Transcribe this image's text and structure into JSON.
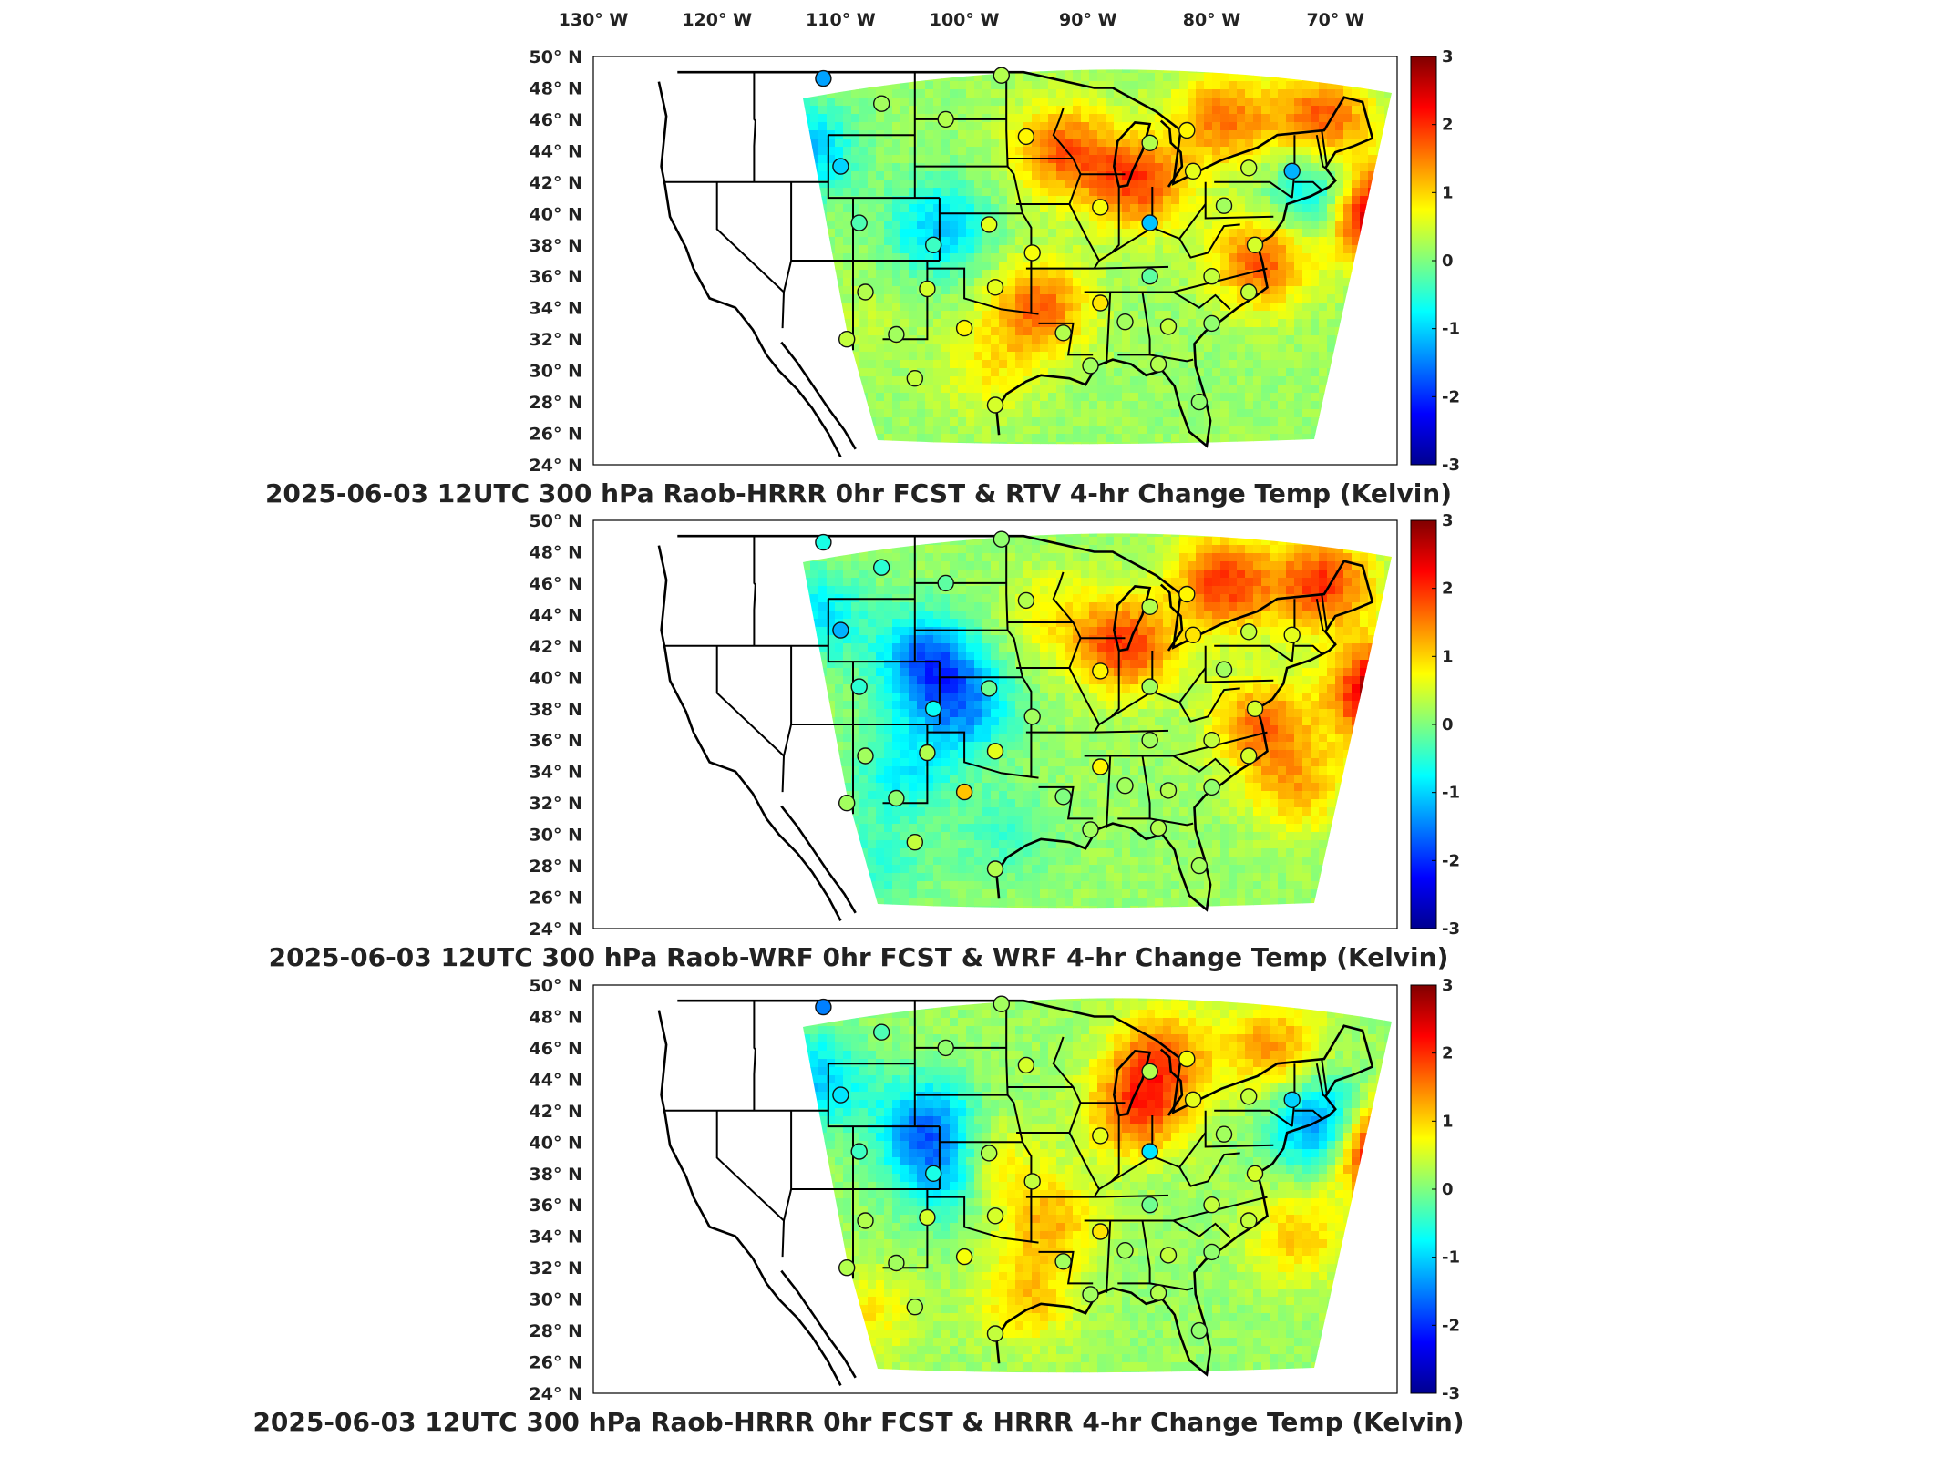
{
  "chart_data": [
    {
      "type": "heatmap",
      "title": "2025-06-03 12UTC 300 hPa Raob-HRRR 0hr FCST & RTV 4-hr Change Temp (Kelvin)",
      "x_ticks": [
        "130° W",
        "120° W",
        "110° W",
        "100° W",
        "90° W",
        "80° W",
        "70° W"
      ],
      "y_ticks": [
        "50° N",
        "48° N",
        "46° N",
        "44° N",
        "42° N",
        "40° N",
        "38° N",
        "36° N",
        "34° N",
        "32° N",
        "30° N",
        "28° N",
        "26° N",
        "24° N"
      ],
      "colorbar": {
        "ticks": [
          "3",
          "2",
          "1",
          "0",
          "-1",
          "-2",
          "-3"
        ],
        "range": [
          -3,
          3
        ],
        "colormap": "jet"
      },
      "lon_range": [
        -130,
        -65
      ],
      "lat_range": [
        24,
        50
      ],
      "field_anomalies": [
        {
          "lon": -113,
          "lat": 44,
          "value": -1.3
        },
        {
          "lon": -102,
          "lat": 39,
          "value": -1.2
        },
        {
          "lon": -92,
          "lat": 44,
          "value": 1.5
        },
        {
          "lon": -86,
          "lat": 42,
          "value": 1.7
        },
        {
          "lon": -79,
          "lat": 46,
          "value": 1.4
        },
        {
          "lon": -71,
          "lat": 46,
          "value": 1.6
        },
        {
          "lon": -67,
          "lat": 40,
          "value": 3.0
        },
        {
          "lon": -71,
          "lat": 41,
          "value": -1.6
        },
        {
          "lon": -76,
          "lat": 37,
          "value": 1.6
        },
        {
          "lon": -94,
          "lat": 34,
          "value": 1.5
        },
        {
          "lon": -98,
          "lat": 30,
          "value": 0.6
        },
        {
          "lon": -108,
          "lat": 33,
          "value": 0.2
        }
      ],
      "stations": [
        {
          "lon": -111.4,
          "lat": 48.6,
          "value": -1.3
        },
        {
          "lon": -106.7,
          "lat": 47.0,
          "value": 0.2
        },
        {
          "lon": -101.5,
          "lat": 46.0,
          "value": 0.3
        },
        {
          "lon": -97.0,
          "lat": 48.8,
          "value": 0.3
        },
        {
          "lon": -95.0,
          "lat": 44.9,
          "value": 0.8
        },
        {
          "lon": -110.0,
          "lat": 43.0,
          "value": -1.0
        },
        {
          "lon": -108.5,
          "lat": 39.4,
          "value": -0.3
        },
        {
          "lon": -102.5,
          "lat": 38.0,
          "value": -0.4
        },
        {
          "lon": -98.0,
          "lat": 39.3,
          "value": 0.6
        },
        {
          "lon": -94.5,
          "lat": 37.5,
          "value": 0.7
        },
        {
          "lon": -89.0,
          "lat": 40.4,
          "value": 0.7
        },
        {
          "lon": -85.0,
          "lat": 44.5,
          "value": 0.3
        },
        {
          "lon": -82.0,
          "lat": 45.3,
          "value": 0.8
        },
        {
          "lon": -81.5,
          "lat": 42.7,
          "value": 0.6
        },
        {
          "lon": -77.0,
          "lat": 42.9,
          "value": 0.4
        },
        {
          "lon": -73.5,
          "lat": 42.7,
          "value": -1.2
        },
        {
          "lon": -79.0,
          "lat": 40.5,
          "value": 0.2
        },
        {
          "lon": -85.0,
          "lat": 39.4,
          "value": -1.1
        },
        {
          "lon": -76.5,
          "lat": 38.0,
          "value": 0.5
        },
        {
          "lon": -80.0,
          "lat": 36.0,
          "value": 0.4
        },
        {
          "lon": -85.0,
          "lat": 36.0,
          "value": -0.2
        },
        {
          "lon": -89.0,
          "lat": 34.3,
          "value": 0.9
        },
        {
          "lon": -92.0,
          "lat": 32.4,
          "value": 0.3
        },
        {
          "lon": -87.0,
          "lat": 33.1,
          "value": 0.2
        },
        {
          "lon": -83.5,
          "lat": 32.8,
          "value": 0.4
        },
        {
          "lon": -80.0,
          "lat": 33.0,
          "value": 0.1
        },
        {
          "lon": -108.0,
          "lat": 35.0,
          "value": 0.3
        },
        {
          "lon": -103.0,
          "lat": 35.2,
          "value": 0.5
        },
        {
          "lon": -97.5,
          "lat": 35.3,
          "value": 0.6
        },
        {
          "lon": -105.5,
          "lat": 32.3,
          "value": 0.2
        },
        {
          "lon": -109.5,
          "lat": 32.0,
          "value": 0.4
        },
        {
          "lon": -100.0,
          "lat": 32.7,
          "value": 0.8
        },
        {
          "lon": -104.0,
          "lat": 29.5,
          "value": 0.4
        },
        {
          "lon": -97.5,
          "lat": 27.8,
          "value": 0.5
        },
        {
          "lon": -89.8,
          "lat": 30.3,
          "value": 0.2
        },
        {
          "lon": -84.3,
          "lat": 30.4,
          "value": 0.3
        },
        {
          "lon": -81.0,
          "lat": 28.0,
          "value": 0.1
        },
        {
          "lon": -77.0,
          "lat": 35.0,
          "value": 0.4
        }
      ]
    },
    {
      "type": "heatmap",
      "title": "2025-06-03 12UTC 300 hPa Raob-WRF 0hr FCST & WRF 4-hr Change Temp (Kelvin)",
      "x_ticks": [],
      "y_ticks": [
        "50° N",
        "48° N",
        "46° N",
        "44° N",
        "42° N",
        "40° N",
        "38° N",
        "36° N",
        "34° N",
        "32° N",
        "30° N",
        "28° N",
        "26° N",
        "24° N"
      ],
      "colorbar": {
        "ticks": [
          "3",
          "2",
          "1",
          "0",
          "-1",
          "-2",
          "-3"
        ],
        "range": [
          -3,
          3
        ],
        "colormap": "jet"
      },
      "lon_range": [
        -130,
        -65
      ],
      "lat_range": [
        24,
        50
      ],
      "field_anomalies": [
        {
          "lon": -112,
          "lat": 44,
          "value": -1.0
        },
        {
          "lon": -103,
          "lat": 41,
          "value": -1.8
        },
        {
          "lon": -100,
          "lat": 38,
          "value": -1.4
        },
        {
          "lon": -105,
          "lat": 34,
          "value": -0.9
        },
        {
          "lon": -87,
          "lat": 42,
          "value": 1.8
        },
        {
          "lon": -79,
          "lat": 46,
          "value": 1.8
        },
        {
          "lon": -71,
          "lat": 46,
          "value": 1.8
        },
        {
          "lon": -66,
          "lat": 39,
          "value": 3.0
        },
        {
          "lon": -76,
          "lat": 37,
          "value": 1.4
        },
        {
          "lon": -73,
          "lat": 33,
          "value": 1.0
        },
        {
          "lon": -93,
          "lat": 44,
          "value": 0.6
        },
        {
          "lon": -97,
          "lat": 30,
          "value": -0.5
        },
        {
          "lon": -107,
          "lat": 28,
          "value": -0.6
        }
      ],
      "stations": [
        {
          "lon": -111.4,
          "lat": 48.6,
          "value": -0.6
        },
        {
          "lon": -106.7,
          "lat": 47.0,
          "value": -0.5
        },
        {
          "lon": -101.5,
          "lat": 46.0,
          "value": -0.2
        },
        {
          "lon": -97.0,
          "lat": 48.8,
          "value": 0.1
        },
        {
          "lon": -95.0,
          "lat": 44.9,
          "value": 0.3
        },
        {
          "lon": -110.0,
          "lat": 43.0,
          "value": -1.2
        },
        {
          "lon": -108.5,
          "lat": 39.4,
          "value": -0.5
        },
        {
          "lon": -102.5,
          "lat": 38.0,
          "value": -0.7
        },
        {
          "lon": -98.0,
          "lat": 39.3,
          "value": -0.1
        },
        {
          "lon": -94.5,
          "lat": 37.5,
          "value": 0.2
        },
        {
          "lon": -89.0,
          "lat": 40.4,
          "value": 0.8
        },
        {
          "lon": -85.0,
          "lat": 44.5,
          "value": 0.3
        },
        {
          "lon": -82.0,
          "lat": 45.3,
          "value": 0.8
        },
        {
          "lon": -81.5,
          "lat": 42.7,
          "value": 0.9
        },
        {
          "lon": -77.0,
          "lat": 42.9,
          "value": 0.4
        },
        {
          "lon": -73.5,
          "lat": 42.7,
          "value": 0.6
        },
        {
          "lon": -79.0,
          "lat": 40.5,
          "value": 0.2
        },
        {
          "lon": -85.0,
          "lat": 39.4,
          "value": 0.2
        },
        {
          "lon": -76.5,
          "lat": 38.0,
          "value": 0.5
        },
        {
          "lon": -80.0,
          "lat": 36.0,
          "value": 0.4
        },
        {
          "lon": -85.0,
          "lat": 36.0,
          "value": 0.2
        },
        {
          "lon": -89.0,
          "lat": 34.3,
          "value": 0.8
        },
        {
          "lon": -92.0,
          "lat": 32.4,
          "value": 0.0
        },
        {
          "lon": -87.0,
          "lat": 33.1,
          "value": 0.2
        },
        {
          "lon": -83.5,
          "lat": 32.8,
          "value": 0.3
        },
        {
          "lon": -80.0,
          "lat": 33.0,
          "value": 0.1
        },
        {
          "lon": -108.0,
          "lat": 35.0,
          "value": 0.2
        },
        {
          "lon": -103.0,
          "lat": 35.2,
          "value": 0.3
        },
        {
          "lon": -97.5,
          "lat": 35.3,
          "value": 0.6
        },
        {
          "lon": -105.5,
          "lat": 32.3,
          "value": 0.1
        },
        {
          "lon": -109.5,
          "lat": 32.0,
          "value": 0.2
        },
        {
          "lon": -100.0,
          "lat": 32.7,
          "value": 1.1
        },
        {
          "lon": -104.0,
          "lat": 29.5,
          "value": 0.4
        },
        {
          "lon": -97.5,
          "lat": 27.8,
          "value": 0.3
        },
        {
          "lon": -89.8,
          "lat": 30.3,
          "value": 0.2
        },
        {
          "lon": -84.3,
          "lat": 30.4,
          "value": 0.3
        },
        {
          "lon": -81.0,
          "lat": 28.0,
          "value": 0.2
        },
        {
          "lon": -77.0,
          "lat": 35.0,
          "value": 0.5
        }
      ]
    },
    {
      "type": "heatmap",
      "title": "2025-06-03 12UTC 300 hPa Raob-HRRR 0hr FCST & HRRR 4-hr Change Temp (Kelvin)",
      "x_ticks": [],
      "y_ticks": [
        "50° N",
        "48° N",
        "46° N",
        "44° N",
        "42° N",
        "40° N",
        "38° N",
        "36° N",
        "34° N",
        "32° N",
        "30° N",
        "28° N",
        "26° N",
        "24° N"
      ],
      "colorbar": {
        "ticks": [
          "3",
          "2",
          "1",
          "0",
          "-1",
          "-2",
          "-3"
        ],
        "range": [
          -3,
          3
        ],
        "colormap": "jet"
      },
      "lon_range": [
        -130,
        -65
      ],
      "lat_range": [
        24,
        50
      ],
      "field_anomalies": [
        {
          "lon": -112,
          "lat": 44,
          "value": -1.2
        },
        {
          "lon": -103,
          "lat": 41,
          "value": -1.6
        },
        {
          "lon": -101,
          "lat": 38,
          "value": -1.8
        },
        {
          "lon": -99,
          "lat": 38.5,
          "value": 1.5
        },
        {
          "lon": -86,
          "lat": 42,
          "value": 1.6
        },
        {
          "lon": -84,
          "lat": 45.5,
          "value": 1.4
        },
        {
          "lon": -75,
          "lat": 46,
          "value": 1.2
        },
        {
          "lon": -66,
          "lat": 39.5,
          "value": 3.0
        },
        {
          "lon": -71,
          "lat": 41,
          "value": -1.8
        },
        {
          "lon": -73,
          "lat": 34,
          "value": 0.9
        },
        {
          "lon": -93,
          "lat": 35,
          "value": 1.0
        },
        {
          "lon": -108,
          "lat": 29,
          "value": 0.7
        },
        {
          "lon": -95,
          "lat": 30,
          "value": 0.9
        }
      ],
      "stations": [
        {
          "lon": -111.4,
          "lat": 48.6,
          "value": -1.5
        },
        {
          "lon": -106.7,
          "lat": 47.0,
          "value": -0.3
        },
        {
          "lon": -101.5,
          "lat": 46.0,
          "value": 0.1
        },
        {
          "lon": -97.0,
          "lat": 48.8,
          "value": 0.2
        },
        {
          "lon": -95.0,
          "lat": 44.9,
          "value": 0.5
        },
        {
          "lon": -110.0,
          "lat": 43.0,
          "value": -0.9
        },
        {
          "lon": -108.5,
          "lat": 39.4,
          "value": -0.4
        },
        {
          "lon": -102.5,
          "lat": 38.0,
          "value": -0.6
        },
        {
          "lon": -98.0,
          "lat": 39.3,
          "value": 0.3
        },
        {
          "lon": -94.5,
          "lat": 37.5,
          "value": 0.4
        },
        {
          "lon": -89.0,
          "lat": 40.4,
          "value": 0.6
        },
        {
          "lon": -85.0,
          "lat": 44.5,
          "value": 0.3
        },
        {
          "lon": -82.0,
          "lat": 45.3,
          "value": 0.7
        },
        {
          "lon": -81.5,
          "lat": 42.7,
          "value": 0.6
        },
        {
          "lon": -77.0,
          "lat": 42.9,
          "value": 0.4
        },
        {
          "lon": -73.5,
          "lat": 42.7,
          "value": -1.0
        },
        {
          "lon": -79.0,
          "lat": 40.5,
          "value": 0.2
        },
        {
          "lon": -85.0,
          "lat": 39.4,
          "value": -0.9
        },
        {
          "lon": -76.5,
          "lat": 38.0,
          "value": 0.5
        },
        {
          "lon": -80.0,
          "lat": 36.0,
          "value": 0.4
        },
        {
          "lon": -85.0,
          "lat": 36.0,
          "value": -0.1
        },
        {
          "lon": -89.0,
          "lat": 34.3,
          "value": 0.9
        },
        {
          "lon": -92.0,
          "lat": 32.4,
          "value": 0.2
        },
        {
          "lon": -87.0,
          "lat": 33.1,
          "value": 0.2
        },
        {
          "lon": -83.5,
          "lat": 32.8,
          "value": 0.4
        },
        {
          "lon": -80.0,
          "lat": 33.0,
          "value": 0.1
        },
        {
          "lon": -108.0,
          "lat": 35.0,
          "value": 0.3
        },
        {
          "lon": -103.0,
          "lat": 35.2,
          "value": 0.5
        },
        {
          "lon": -97.5,
          "lat": 35.3,
          "value": 0.5
        },
        {
          "lon": -105.5,
          "lat": 32.3,
          "value": 0.2
        },
        {
          "lon": -109.5,
          "lat": 32.0,
          "value": 0.3
        },
        {
          "lon": -100.0,
          "lat": 32.7,
          "value": 0.7
        },
        {
          "lon": -104.0,
          "lat": 29.5,
          "value": 0.3
        },
        {
          "lon": -97.5,
          "lat": 27.8,
          "value": 0.4
        },
        {
          "lon": -89.8,
          "lat": 30.3,
          "value": 0.2
        },
        {
          "lon": -84.3,
          "lat": 30.4,
          "value": 0.3
        },
        {
          "lon": -81.0,
          "lat": 28.0,
          "value": 0.1
        },
        {
          "lon": -77.0,
          "lat": 35.0,
          "value": 0.4
        }
      ]
    }
  ]
}
